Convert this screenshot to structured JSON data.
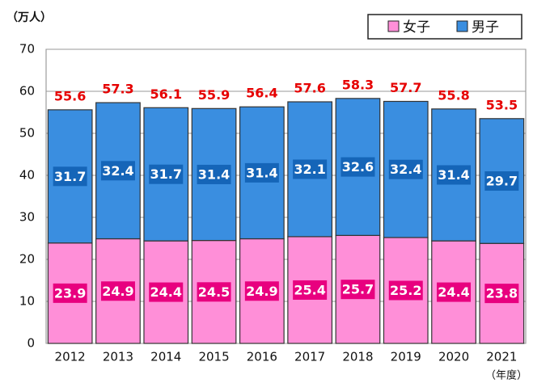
{
  "chart_data": {
    "type": "stacked_bar",
    "y_label": "（万人）",
    "x_label": "（年度）",
    "categories": [
      "2012",
      "2013",
      "2014",
      "2015",
      "2016",
      "2017",
      "2018",
      "2019",
      "2020",
      "2021"
    ],
    "series": [
      {
        "name": "女子",
        "color": "#ff8fd8",
        "label_color": "#e8007f",
        "values": [
          23.9,
          24.9,
          24.4,
          24.5,
          24.9,
          25.4,
          25.7,
          25.2,
          24.4,
          23.8
        ]
      },
      {
        "name": "男子",
        "color": "#3a8ee0",
        "label_color": "#1565b8",
        "values": [
          31.7,
          32.4,
          31.7,
          31.4,
          31.4,
          32.1,
          32.6,
          32.4,
          31.4,
          29.7
        ]
      }
    ],
    "totals": [
      55.6,
      57.3,
      56.1,
      55.9,
      56.4,
      57.6,
      58.3,
      57.7,
      55.8,
      53.5
    ],
    "total_color": "#e60000",
    "ylim": [
      0,
      70
    ],
    "yticks": [
      0,
      10,
      20,
      30,
      40,
      50,
      60,
      70
    ],
    "grid": true,
    "legend": "top-right"
  }
}
